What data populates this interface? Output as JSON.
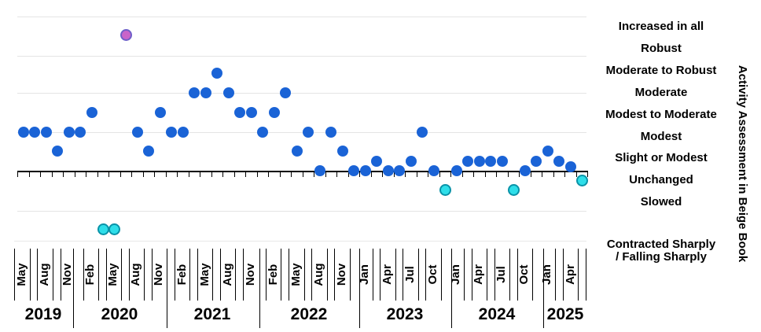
{
  "chart_data": {
    "type": "scatter",
    "title": "",
    "y_axis_title": "Activity Assessment in Beige Book",
    "y_categories": [
      {
        "label": "Increased in all",
        "level": 0
      },
      {
        "label": "Robust",
        "level": 1
      },
      {
        "label": "Moderate to Robust",
        "level": 2
      },
      {
        "label": "Moderate",
        "level": 3
      },
      {
        "label": "Modest to Moderate",
        "level": 4
      },
      {
        "label": "Modest",
        "level": 5
      },
      {
        "label": "Slight or Modest",
        "level": 6
      },
      {
        "label": "Unchanged",
        "level": 7
      },
      {
        "label": "Slowed",
        "level": 8
      },
      {
        "label": "Contracted Sharply\n/ Falling Sharply",
        "level": 10
      }
    ],
    "x_month_labels": [
      "May",
      "Aug",
      "Nov",
      "Feb",
      "May",
      "Aug",
      "Nov",
      "Feb",
      "May",
      "Aug",
      "Nov",
      "Feb",
      "May",
      "Aug",
      "Nov",
      "Jan",
      "Apr",
      "Jul",
      "Oct",
      "Jan",
      "Apr",
      "Jul",
      "Oct",
      "Jan",
      "Apr"
    ],
    "x_year_labels": [
      "2019",
      "2020",
      "2021",
      "2022",
      "2023",
      "2024",
      "2025"
    ],
    "palette": {
      "blue": "#1a63d6",
      "pink": "#c964c9",
      "pink_border": "#6f5fc9",
      "cyan": "#2edee9",
      "cyan_border": "#0a93a8",
      "gridline": "#e4e4e4",
      "axis": "#000000"
    },
    "points": [
      {
        "date": "2019-Jun",
        "level": 5,
        "color": "blue"
      },
      {
        "date": "2019-Jul",
        "level": 5,
        "color": "blue"
      },
      {
        "date": "2019-Sep",
        "level": 5,
        "color": "blue"
      },
      {
        "date": "2019-Oct",
        "level": 6,
        "color": "blue"
      },
      {
        "date": "2019-Dec",
        "level": 5,
        "color": "blue"
      },
      {
        "date": "2020-Jan",
        "level": 5,
        "color": "blue"
      },
      {
        "date": "2020-Mar",
        "level": 4,
        "color": "blue"
      },
      {
        "date": "2020-Apr",
        "level": 10,
        "color": "cyan"
      },
      {
        "date": "2020-May",
        "level": 10,
        "color": "cyan"
      },
      {
        "date": "2020-Jul",
        "level": 0,
        "color": "pink"
      },
      {
        "date": "2020-Sep",
        "level": 5,
        "color": "blue"
      },
      {
        "date": "2020-Oct",
        "level": 6,
        "color": "blue"
      },
      {
        "date": "2020-Dec",
        "level": 4,
        "color": "blue"
      },
      {
        "date": "2021-Jan",
        "level": 5,
        "color": "blue"
      },
      {
        "date": "2021-Mar",
        "level": 5,
        "color": "blue"
      },
      {
        "date": "2021-Apr",
        "level": 3,
        "color": "blue"
      },
      {
        "date": "2021-Jun",
        "level": 3,
        "color": "blue"
      },
      {
        "date": "2021-Jul",
        "level": 2,
        "color": "blue"
      },
      {
        "date": "2021-Sep",
        "level": 3,
        "color": "blue"
      },
      {
        "date": "2021-Oct",
        "level": 4,
        "color": "blue"
      },
      {
        "date": "2021-Dec",
        "level": 4,
        "color": "blue"
      },
      {
        "date": "2022-Jan",
        "level": 5,
        "color": "blue"
      },
      {
        "date": "2022-Mar",
        "level": 4,
        "color": "blue"
      },
      {
        "date": "2022-Apr",
        "level": 3,
        "color": "blue"
      },
      {
        "date": "2022-Jun",
        "level": 6,
        "color": "blue"
      },
      {
        "date": "2022-Jul",
        "level": 5,
        "color": "blue"
      },
      {
        "date": "2022-Sep",
        "level": 7,
        "color": "blue"
      },
      {
        "date": "2022-Oct",
        "level": 5,
        "color": "blue"
      },
      {
        "date": "2022-Nov",
        "level": 6,
        "color": "blue"
      },
      {
        "date": "2023-Jan",
        "level": 7,
        "color": "blue"
      },
      {
        "date": "2023-Mar",
        "level": 7,
        "color": "blue"
      },
      {
        "date": "2023-Apr",
        "level": 6.5,
        "color": "blue"
      },
      {
        "date": "2023-May",
        "level": 7,
        "color": "blue"
      },
      {
        "date": "2023-Jul",
        "level": 7,
        "color": "blue"
      },
      {
        "date": "2023-Sep",
        "level": 6.5,
        "color": "blue"
      },
      {
        "date": "2023-Oct",
        "level": 5,
        "color": "blue"
      },
      {
        "date": "2023-Nov",
        "level": 7,
        "color": "blue"
      },
      {
        "date": "2024-Jan",
        "level": 8,
        "color": "cyan"
      },
      {
        "date": "2024-Mar",
        "level": 7,
        "color": "blue"
      },
      {
        "date": "2024-Apr",
        "level": 6.5,
        "color": "blue"
      },
      {
        "date": "2024-May",
        "level": 6.5,
        "color": "blue"
      },
      {
        "date": "2024-Jul",
        "level": 6.5,
        "color": "blue"
      },
      {
        "date": "2024-Sep",
        "level": 6.5,
        "color": "blue"
      },
      {
        "date": "2024-Oct",
        "level": 8,
        "color": "cyan"
      },
      {
        "date": "2024-Dec",
        "level": 7,
        "color": "blue"
      },
      {
        "date": "2025-Jan",
        "level": 6.5,
        "color": "blue"
      },
      {
        "date": "2025-Mar",
        "level": 6,
        "color": "blue"
      },
      {
        "date": "2025-Apr",
        "level": 6.5,
        "color": "blue"
      },
      {
        "date": "2025-Jun",
        "level": 6.8,
        "color": "blue"
      },
      {
        "date": "2025-Jul",
        "level": 7.5,
        "color": "cyan"
      }
    ]
  }
}
